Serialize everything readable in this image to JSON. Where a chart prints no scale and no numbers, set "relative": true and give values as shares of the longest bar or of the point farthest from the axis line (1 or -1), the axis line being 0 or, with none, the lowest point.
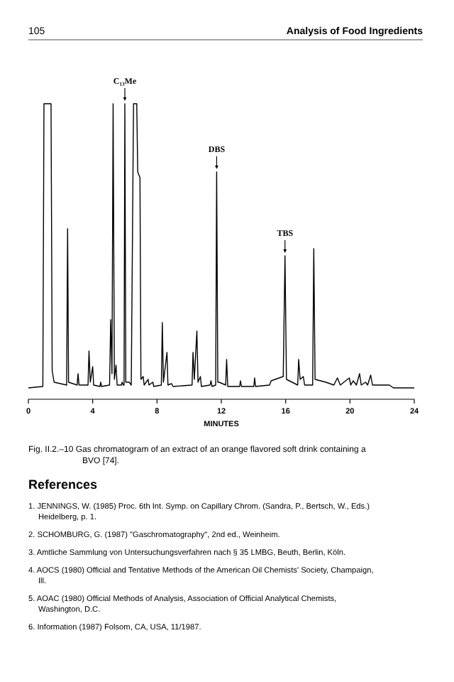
{
  "chart_data": {
    "type": "line",
    "relative": true,
    "xlabel": "MINUTES",
    "xlim": [
      0,
      24
    ],
    "xticks": [
      0,
      4,
      8,
      12,
      16,
      20,
      24
    ],
    "x": [
      0,
      0.9,
      0.97,
      1.41,
      1.48,
      1.6,
      2.38,
      2.44,
      2.5,
      3.03,
      3.09,
      3.15,
      3.71,
      3.77,
      3.85,
      4.0,
      4.06,
      4.45,
      4.5,
      4.55,
      5.05,
      5.12,
      5.2,
      5.27,
      5.35,
      5.45,
      5.52,
      5.78,
      5.83,
      5.9,
      5.95,
      6.0,
      6.06,
      6.27,
      6.4,
      6.54,
      6.74,
      6.8,
      6.94,
      7.0,
      7.14,
      7.2,
      7.45,
      7.5,
      7.74,
      7.8,
      8.27,
      8.33,
      8.4,
      8.62,
      8.68,
      8.9,
      9.0,
      10.18,
      10.24,
      10.32,
      10.48,
      10.55,
      10.7,
      10.76,
      11.3,
      11.36,
      11.42,
      11.65,
      11.71,
      11.78,
      11.86,
      12.27,
      12.33,
      12.4,
      13.14,
      13.19,
      13.25,
      14.02,
      14.07,
      14.13,
      15.0,
      15.1,
      15.85,
      15.96,
      16.05,
      16.75,
      16.81,
      16.9,
      17.1,
      17.18,
      17.68,
      17.75,
      17.83,
      18.5,
      19.0,
      19.22,
      19.4,
      19.96,
      20.05,
      20.2,
      20.4,
      20.6,
      20.7,
      20.97,
      21.1,
      21.29,
      21.4,
      22.45,
      22.7,
      24
    ],
    "series": [
      {
        "color": "#000000",
        "values": [
          0,
          0.005,
          1,
          1,
          0.06,
          0.02,
          0.01,
          0.56,
          0.02,
          0.01,
          0.05,
          0.01,
          0.01,
          0.13,
          0.02,
          0.075,
          0.01,
          0.005,
          0.02,
          0.005,
          0.01,
          0.24,
          0.05,
          1,
          0.03,
          0.08,
          0.01,
          0.01,
          0.02,
          0.01,
          0.01,
          1,
          0.02,
          0.02,
          0.01,
          1,
          1,
          0.76,
          0.74,
          0.03,
          0.04,
          0.01,
          0.03,
          0.01,
          0.02,
          0.005,
          0.01,
          0.23,
          0.02,
          0.125,
          0.01,
          0.015,
          0.005,
          0.01,
          0.125,
          0.03,
          0.2,
          0.02,
          0.04,
          0.005,
          0.01,
          0.025,
          0.005,
          0.01,
          0.76,
          0.02,
          0.02,
          0.01,
          0.1,
          0.005,
          0.005,
          0.025,
          0.005,
          0.005,
          0.035,
          0.005,
          0.01,
          0.025,
          0.04,
          0.465,
          0.03,
          0.01,
          0.1,
          0.03,
          0.04,
          0.01,
          0.01,
          0.49,
          0.03,
          0.02,
          0.01,
          0.035,
          0.01,
          0.035,
          0.01,
          0.025,
          0.01,
          0.05,
          0.01,
          0.02,
          0.01,
          0.045,
          0.01,
          0.01,
          0,
          0
        ]
      }
    ],
    "annotations": [
      {
        "text": "C₁₃Me",
        "x": 6.0,
        "y": 1
      },
      {
        "text": "DBS",
        "x": 11.71,
        "y": 0.76
      },
      {
        "text": "TBS",
        "x": 15.96,
        "y": 0.465
      },
      "105",
      "Analysis of Food Ingredients",
      "Fig. II.2.–10 Gas chromatogram of an extract of an orange flavored soft drink containing a BVO [74].",
      "References",
      "1. JENNINGS, W. (1985) Proc. 6th Int. Symp. on Capillary Chrom. (Sandra, P., Bertsch, W., Eds.) Heidelberg, p. 1.",
      "2. SCHOMBURG, G. (1987) \"Gaschromatography\", 2nd ed., Weinheim.",
      "3. Amtliche Sammlung von Untersuchungsverfahren nach § 35 LMBG, Beuth, Berlin, Köln.",
      "4. AOCS (1980) Official and Tentative Methods of the American Oil Chemists' Society, Champaign, Ill.",
      "5. AOAC (1980) Official Methods of Analysis, Association of Official Analytical Chemists, Washington, D.C.",
      "6. Information (1987) Folsom, CA, USA, 11/1987."
    ]
  }
}
